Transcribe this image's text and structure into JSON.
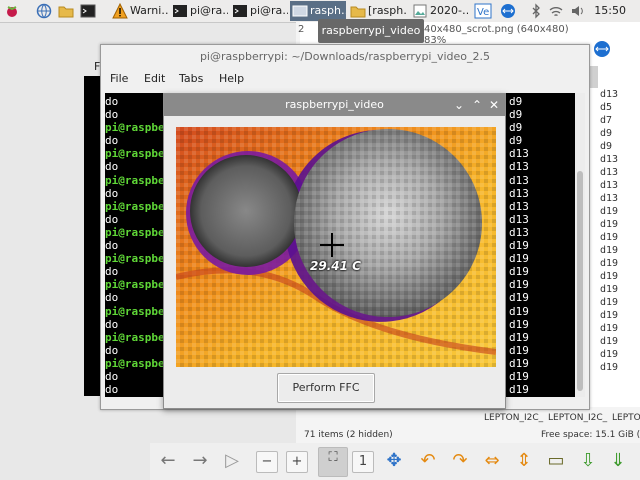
{
  "taskbar": {
    "tasks": [
      {
        "label": "Warni…"
      },
      {
        "label": "pi@ra…"
      },
      {
        "label": "pi@ra…"
      },
      {
        "label": "rasph…"
      },
      {
        "label": "[rasph…"
      },
      {
        "label": "2020-…"
      }
    ],
    "clock": "15:50"
  },
  "tooltip": {
    "text": "raspberrypi_video"
  },
  "file_manager": {
    "partial_title": "2",
    "partial_title2": "40x480_scrot.png (640x480) 83%",
    "status_items": "71 items (2 hidden)",
    "free_space": "Free space: 15.1 GiB (To",
    "files": [
      "LEPTON_I2C_",
      "LEPTON_I2C_",
      "LEPTO"
    ],
    "right_column": [
      "d13",
      "d5",
      "d7",
      "d9",
      "d9",
      "d13",
      "d13",
      "d13",
      "d13",
      "d19",
      "d19",
      "d19",
      "d19",
      "d19",
      "d19",
      "d19",
      "d19",
      "d19",
      "d19",
      "d19",
      "d19",
      "d19",
      "d19"
    ],
    "partial_top_letter": "F"
  },
  "terminal": {
    "title": "pi@raspberrypi: ~/Downloads/raspberrypi_video_2.5",
    "menu": [
      "File",
      "Edit",
      "Tabs",
      "Help"
    ],
    "left_prefix_rows": [
      "do",
      "do",
      "do",
      "do",
      "do",
      "do",
      "do",
      "do",
      "do",
      "do",
      "do",
      "do",
      "do",
      "do",
      "do",
      "do",
      "do",
      "do",
      "do",
      "do",
      "do",
      "do",
      "do"
    ],
    "prompt": "pi@raspbe",
    "right_rows": [
      "d9",
      "d9",
      "d9",
      "d9",
      "d13",
      "d13",
      "d13",
      "d13",
      "d13",
      "d13",
      "d13",
      "d19",
      "d19",
      "d19",
      "d19",
      "d19",
      "d19",
      "d19",
      "d19",
      "d19",
      "d19",
      "d19",
      "d19"
    ]
  },
  "video_window": {
    "title": "raspberrypi_video",
    "temperature": "29.41 C",
    "button": "Perform FFC"
  }
}
